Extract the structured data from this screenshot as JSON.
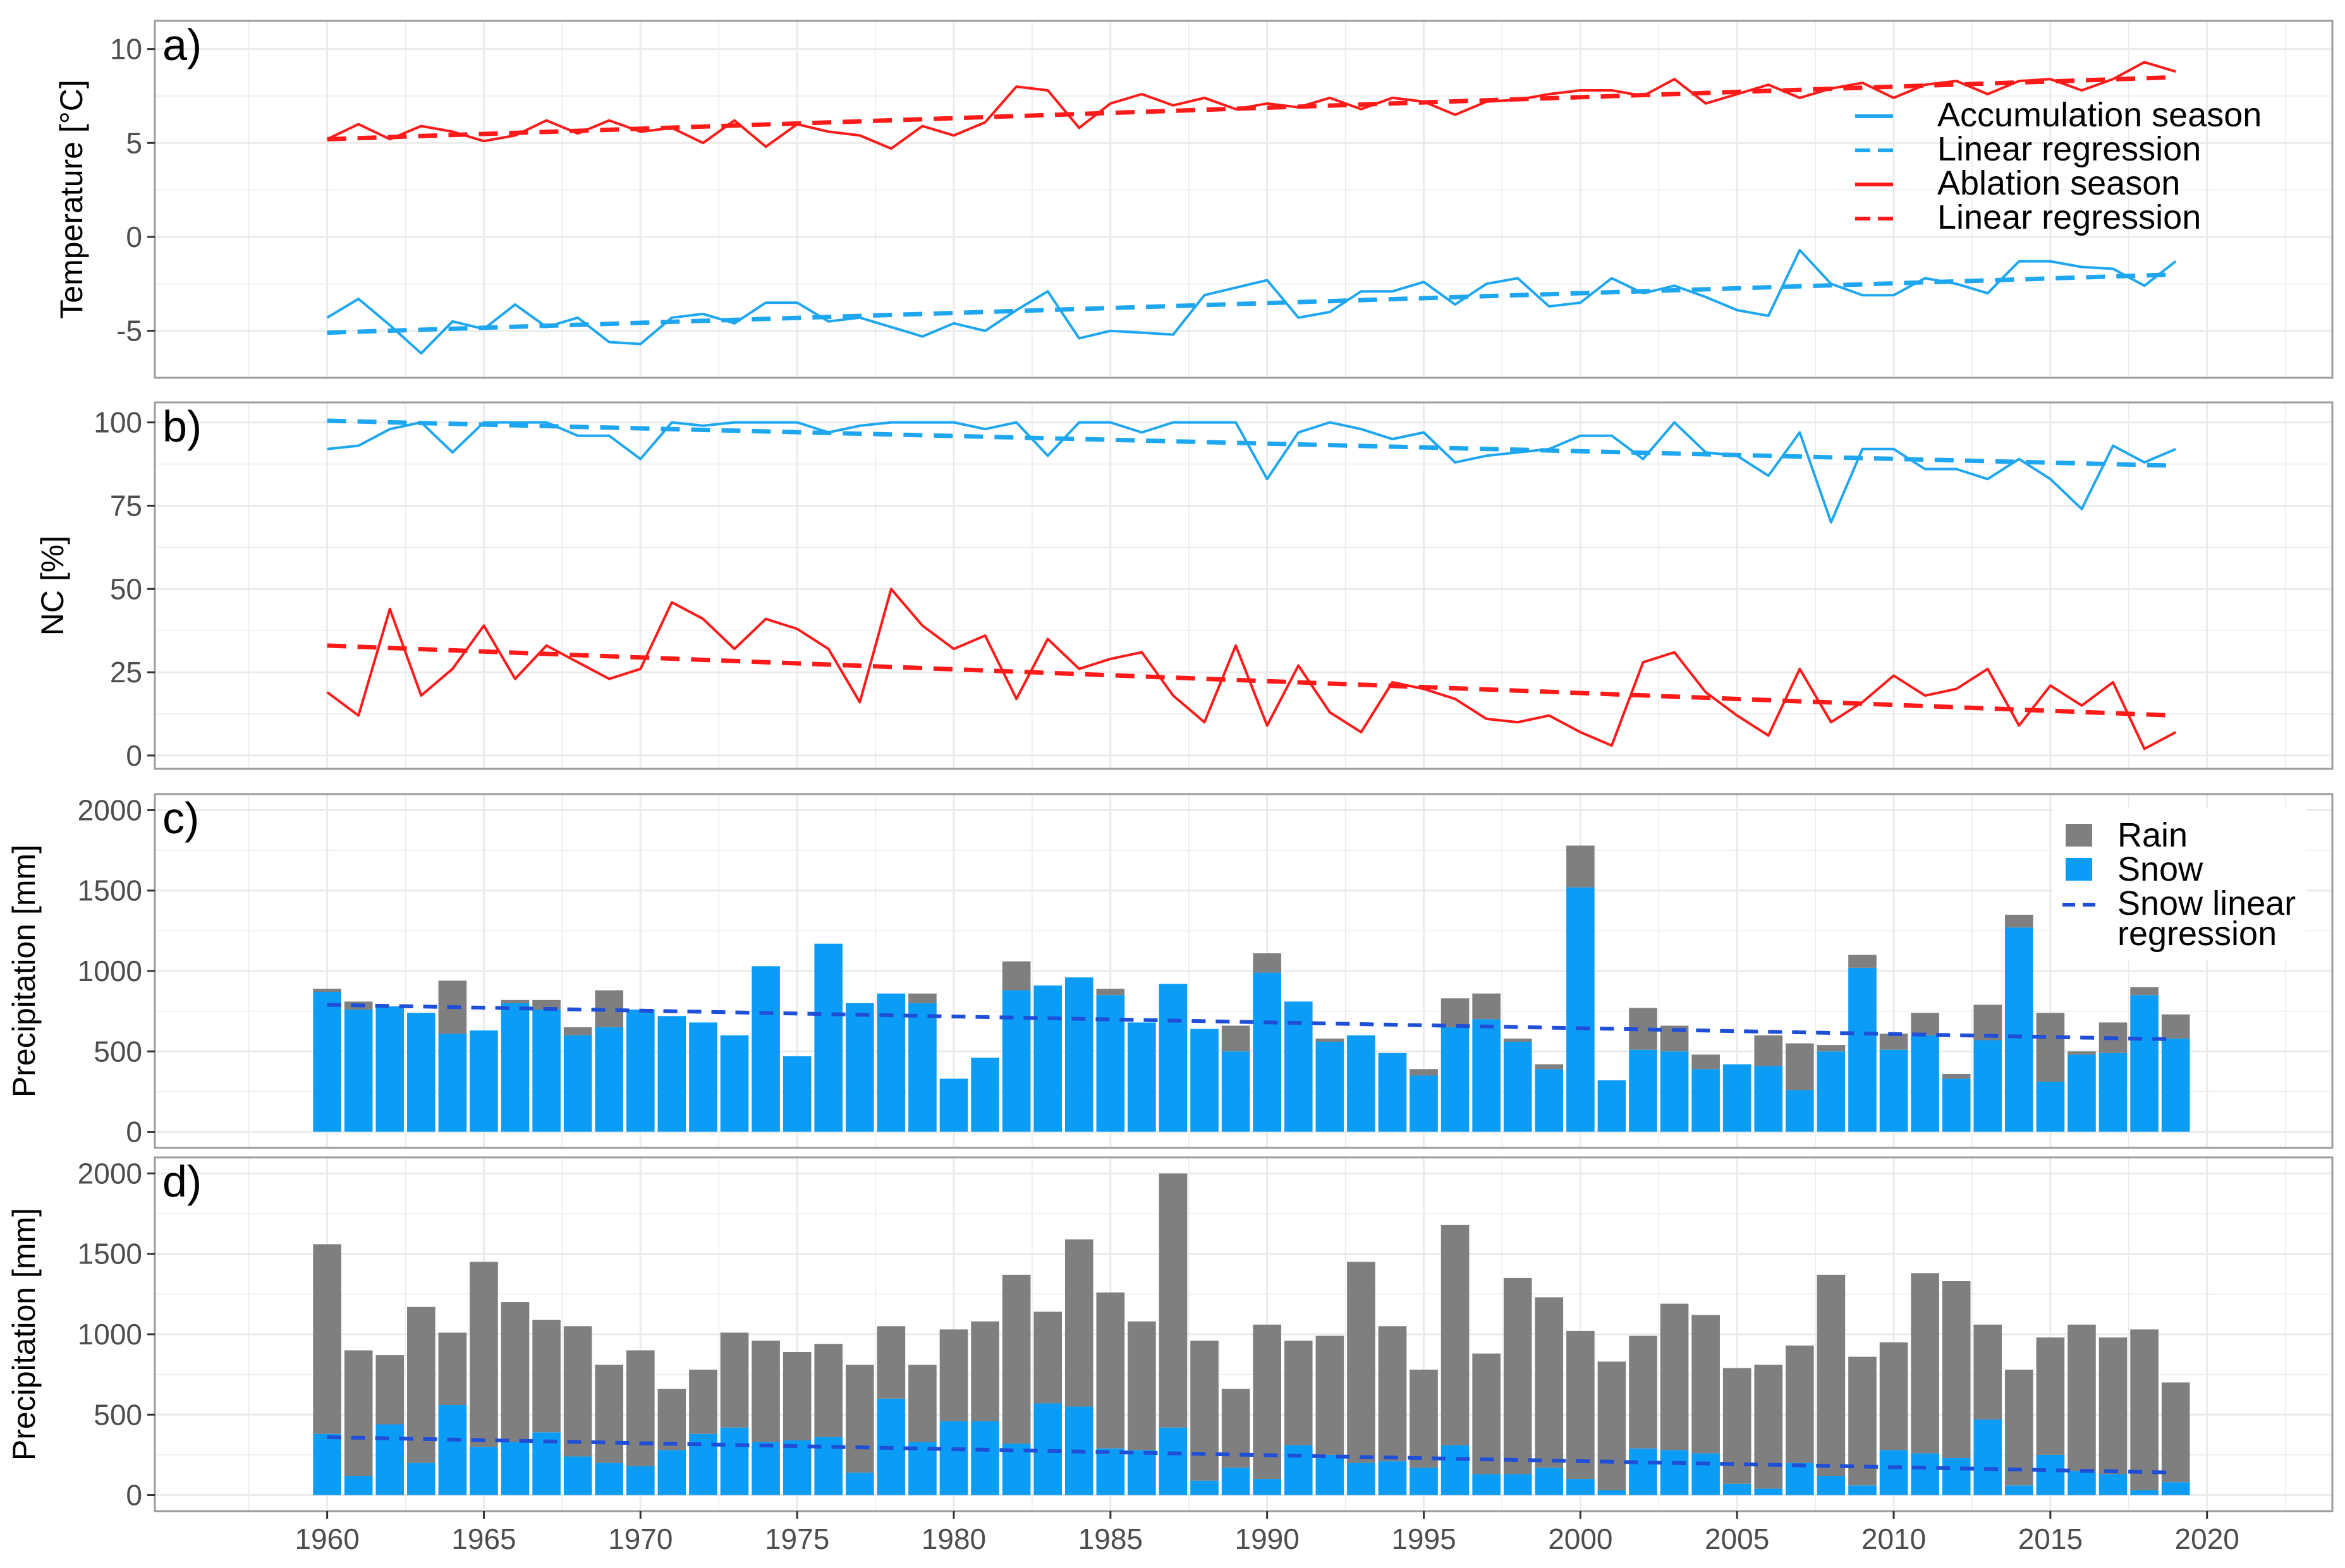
{
  "colors": {
    "accumulation": "#1ea7f0",
    "ablation": "#ff1a1a",
    "rain": "#7f7f7f",
    "snow": "#0b9cf5",
    "snow_trend": "#1f4fd6",
    "grid": "#ebebeb",
    "panel_border": "#9c9c9c"
  },
  "chart_data": [
    {
      "type": "line",
      "panel_label": "a)",
      "ylabel": "Temperature [°C]",
      "ylim": [
        -7.5,
        11.5
      ],
      "y_ticks": [
        -5,
        0,
        5,
        10
      ],
      "y_tick_labels": [
        "-5",
        "0",
        "5",
        "10"
      ],
      "grid": true,
      "legend_position": "right",
      "x": [
        1960,
        1961,
        1962,
        1963,
        1964,
        1965,
        1966,
        1967,
        1968,
        1969,
        1970,
        1971,
        1972,
        1973,
        1974,
        1975,
        1976,
        1977,
        1978,
        1979,
        1980,
        1981,
        1982,
        1983,
        1984,
        1985,
        1986,
        1987,
        1988,
        1989,
        1990,
        1991,
        1992,
        1993,
        1994,
        1995,
        1996,
        1997,
        1998,
        1999,
        2000,
        2001,
        2002,
        2003,
        2004,
        2005,
        2006,
        2007,
        2008,
        2009,
        2010,
        2011,
        2012,
        2013,
        2014,
        2015,
        2016,
        2017,
        2018,
        2019
      ],
      "series": [
        {
          "name": "Ablation season",
          "style": "solid",
          "color_key": "ablation",
          "values": [
            5.2,
            6.0,
            5.2,
            5.9,
            5.6,
            5.1,
            5.4,
            6.2,
            5.5,
            6.2,
            5.6,
            5.8,
            5.0,
            6.2,
            4.8,
            6.0,
            5.6,
            5.4,
            4.7,
            5.9,
            5.4,
            6.1,
            8.0,
            7.8,
            5.8,
            7.1,
            7.6,
            7.0,
            7.4,
            6.8,
            7.1,
            6.9,
            7.4,
            6.8,
            7.4,
            7.2,
            6.5,
            7.2,
            7.3,
            7.6,
            7.8,
            7.8,
            7.5,
            8.4,
            7.1,
            7.6,
            8.1,
            7.4,
            7.9,
            8.2,
            7.4,
            8.1,
            8.3,
            7.6,
            8.3,
            8.4,
            7.8,
            8.4,
            9.3,
            8.8
          ]
        },
        {
          "name": "Linear regression",
          "style": "dashed",
          "color_key": "ablation",
          "values_endpoints": {
            "x": [
              1960,
              2019
            ],
            "y": [
              5.2,
              8.5
            ]
          }
        },
        {
          "name": "Accumulation season",
          "style": "solid",
          "color_key": "accumulation",
          "values": [
            -4.3,
            -3.3,
            -4.7,
            -6.2,
            -4.5,
            -4.9,
            -3.6,
            -4.8,
            -4.3,
            -5.6,
            -5.7,
            -4.3,
            -4.1,
            -4.6,
            -3.5,
            -3.5,
            -4.5,
            -4.3,
            -4.8,
            -5.3,
            -4.6,
            -5.0,
            -3.9,
            -2.9,
            -5.4,
            -5.0,
            -5.1,
            -5.2,
            -3.1,
            -2.7,
            -2.3,
            -4.3,
            -4.0,
            -2.9,
            -2.9,
            -2.4,
            -3.6,
            -2.5,
            -2.2,
            -3.7,
            -3.5,
            -2.2,
            -3.0,
            -2.6,
            -3.2,
            -3.9,
            -4.2,
            -0.7,
            -2.5,
            -3.1,
            -3.1,
            -2.2,
            -2.5,
            -3.0,
            -1.3,
            -1.3,
            -1.6,
            -1.7,
            -2.6,
            -1.3
          ]
        },
        {
          "name": "Linear regression",
          "style": "dashed",
          "color_key": "accumulation",
          "values_endpoints": {
            "x": [
              1960,
              2019
            ],
            "y": [
              -5.1,
              -2.0
            ]
          }
        }
      ],
      "legend": [
        {
          "label": "Accumulation season",
          "style": "solid",
          "color_key": "accumulation"
        },
        {
          "label": "Linear regression",
          "style": "dashed",
          "color_key": "accumulation"
        },
        {
          "label": "Ablation season",
          "style": "solid",
          "color_key": "ablation"
        },
        {
          "label": "Linear regression",
          "style": "dashed",
          "color_key": "ablation"
        }
      ]
    },
    {
      "type": "line",
      "panel_label": "b)",
      "ylabel": "NC [%]",
      "ylim": [
        -4,
        106
      ],
      "y_ticks": [
        0,
        25,
        50,
        75,
        100
      ],
      "y_tick_labels": [
        "0",
        "25",
        "50",
        "75",
        "100"
      ],
      "grid": true,
      "x": [
        1960,
        1961,
        1962,
        1963,
        1964,
        1965,
        1966,
        1967,
        1968,
        1969,
        1970,
        1971,
        1972,
        1973,
        1974,
        1975,
        1976,
        1977,
        1978,
        1979,
        1980,
        1981,
        1982,
        1983,
        1984,
        1985,
        1986,
        1987,
        1988,
        1989,
        1990,
        1991,
        1992,
        1993,
        1994,
        1995,
        1996,
        1997,
        1998,
        1999,
        2000,
        2001,
        2002,
        2003,
        2004,
        2005,
        2006,
        2007,
        2008,
        2009,
        2010,
        2011,
        2012,
        2013,
        2014,
        2015,
        2016,
        2017,
        2018,
        2019
      ],
      "series": [
        {
          "name": "Accumulation season",
          "style": "solid",
          "color_key": "accumulation",
          "values": [
            92,
            93,
            98,
            100,
            91,
            100,
            100,
            100,
            96,
            96,
            89,
            100,
            99,
            100,
            100,
            100,
            97,
            99,
            100,
            100,
            100,
            98,
            100,
            90,
            100,
            100,
            97,
            100,
            100,
            100,
            83,
            97,
            100,
            98,
            95,
            97,
            88,
            90,
            91,
            92,
            96,
            96,
            89,
            100,
            91,
            90,
            84,
            97,
            70,
            92,
            92,
            86,
            86,
            83,
            89,
            83,
            74,
            93,
            88,
            92
          ]
        },
        {
          "name": "Linear regression",
          "style": "dashed",
          "color_key": "accumulation",
          "values_endpoints": {
            "x": [
              1960,
              2019
            ],
            "y": [
              100.5,
              87
            ]
          }
        },
        {
          "name": "Ablation season",
          "style": "solid",
          "color_key": "ablation",
          "values": [
            19,
            12,
            44,
            18,
            26,
            39,
            23,
            33,
            28,
            23,
            26,
            46,
            41,
            32,
            41,
            38,
            32,
            16,
            50,
            39,
            32,
            36,
            17,
            35,
            26,
            29,
            31,
            18,
            10,
            33,
            9,
            27,
            13,
            7,
            22,
            20,
            17,
            11,
            10,
            12,
            7,
            3,
            28,
            31,
            19,
            12,
            6,
            26,
            10,
            16,
            24,
            18,
            20,
            26,
            9,
            21,
            15,
            22,
            2,
            7
          ]
        },
        {
          "name": "Linear regression",
          "style": "dashed",
          "color_key": "ablation",
          "values_endpoints": {
            "x": [
              1960,
              2019
            ],
            "y": [
              33,
              12
            ]
          }
        }
      ]
    },
    {
      "type": "bar",
      "stacked": true,
      "panel_label": "c)",
      "ylabel": "Precipitation [mm]",
      "ylim": [
        -100,
        2100
      ],
      "y_ticks": [
        0,
        500,
        1000,
        1500,
        2000
      ],
      "y_tick_labels": [
        "0",
        "500",
        "1000",
        "1500",
        "2000"
      ],
      "grid": true,
      "legend_position": "top-right",
      "x": [
        1960,
        1961,
        1962,
        1963,
        1964,
        1965,
        1966,
        1967,
        1968,
        1969,
        1970,
        1971,
        1972,
        1973,
        1974,
        1975,
        1976,
        1977,
        1978,
        1979,
        1980,
        1981,
        1982,
        1983,
        1984,
        1985,
        1986,
        1987,
        1988,
        1989,
        1990,
        1991,
        1992,
        1993,
        1994,
        1995,
        1996,
        1997,
        1998,
        1999,
        2000,
        2001,
        2002,
        2003,
        2004,
        2005,
        2006,
        2007,
        2008,
        2009,
        2010,
        2011,
        2012,
        2013,
        2014,
        2015,
        2016,
        2017,
        2018,
        2019
      ],
      "series": [
        {
          "name": "Snow",
          "color_key": "snow",
          "values": [
            870,
            760,
            780,
            740,
            610,
            630,
            800,
            760,
            600,
            650,
            760,
            720,
            680,
            600,
            1030,
            470,
            1170,
            800,
            860,
            800,
            330,
            460,
            880,
            910,
            960,
            850,
            680,
            920,
            640,
            500,
            990,
            810,
            560,
            600,
            490,
            350,
            650,
            700,
            560,
            390,
            1520,
            320,
            510,
            500,
            390,
            420,
            410,
            260,
            500,
            1020,
            510,
            600,
            330,
            570,
            1270,
            310,
            480,
            490,
            850,
            580
          ]
        },
        {
          "name": "Rain",
          "color_key": "rain",
          "values": [
            20,
            50,
            0,
            0,
            330,
            0,
            20,
            60,
            50,
            230,
            0,
            0,
            0,
            0,
            0,
            0,
            0,
            0,
            0,
            60,
            0,
            0,
            180,
            0,
            0,
            40,
            0,
            0,
            0,
            160,
            120,
            0,
            20,
            0,
            0,
            40,
            180,
            160,
            20,
            30,
            260,
            0,
            260,
            160,
            90,
            0,
            190,
            290,
            40,
            80,
            100,
            140,
            30,
            220,
            80,
            430,
            20,
            190,
            50,
            150
          ]
        },
        {
          "name": "Snow linear regression",
          "style": "dashed",
          "color_key": "snow_trend",
          "values_endpoints": {
            "x": [
              1960,
              2019
            ],
            "y": [
              790,
              575
            ]
          }
        }
      ],
      "legend": [
        {
          "label": "Rain",
          "kind": "box",
          "color_key": "rain"
        },
        {
          "label": "Snow",
          "kind": "box",
          "color_key": "snow"
        },
        {
          "label": "Snow linear",
          "label_line2": "regression",
          "kind": "dashed",
          "color_key": "snow_trend"
        }
      ]
    },
    {
      "type": "bar",
      "stacked": true,
      "panel_label": "d)",
      "ylabel": "Precipitation [mm]",
      "ylim": [
        -100,
        2100
      ],
      "y_ticks": [
        0,
        500,
        1000,
        1500,
        2000
      ],
      "y_tick_labels": [
        "0",
        "500",
        "1000",
        "1500",
        "2000"
      ],
      "xlim": [
        1954.5,
        2024
      ],
      "x_ticks": [
        1960,
        1965,
        1970,
        1975,
        1980,
        1985,
        1990,
        1995,
        2000,
        2005,
        2010,
        2015,
        2020
      ],
      "x_tick_labels": [
        "1960",
        "1965",
        "1970",
        "1975",
        "1980",
        "1985",
        "1990",
        "1995",
        "2000",
        "2005",
        "2010",
        "2015",
        "2020"
      ],
      "grid": true,
      "x": [
        1960,
        1961,
        1962,
        1963,
        1964,
        1965,
        1966,
        1967,
        1968,
        1969,
        1970,
        1971,
        1972,
        1973,
        1974,
        1975,
        1976,
        1977,
        1978,
        1979,
        1980,
        1981,
        1982,
        1983,
        1984,
        1985,
        1986,
        1987,
        1988,
        1989,
        1990,
        1991,
        1992,
        1993,
        1994,
        1995,
        1996,
        1997,
        1998,
        1999,
        2000,
        2001,
        2002,
        2003,
        2004,
        2005,
        2006,
        2007,
        2008,
        2009,
        2010,
        2011,
        2012,
        2013,
        2014,
        2015,
        2016,
        2017,
        2018,
        2019
      ],
      "series": [
        {
          "name": "Snow",
          "color_key": "snow",
          "values": [
            380,
            120,
            440,
            200,
            560,
            300,
            330,
            390,
            240,
            200,
            180,
            280,
            380,
            420,
            330,
            340,
            360,
            140,
            600,
            330,
            460,
            460,
            320,
            570,
            550,
            290,
            280,
            420,
            90,
            170,
            100,
            310,
            250,
            200,
            210,
            170,
            310,
            130,
            130,
            170,
            100,
            30,
            290,
            280,
            260,
            70,
            40,
            200,
            120,
            60,
            280,
            260,
            230,
            470,
            60,
            250,
            150,
            130,
            30,
            80
          ]
        },
        {
          "name": "Rain",
          "color_key": "rain",
          "values": [
            1180,
            780,
            430,
            970,
            450,
            1150,
            870,
            700,
            810,
            610,
            720,
            380,
            400,
            590,
            630,
            550,
            580,
            670,
            450,
            480,
            570,
            620,
            1050,
            570,
            1040,
            970,
            800,
            1580,
            870,
            490,
            960,
            650,
            740,
            1250,
            840,
            610,
            1370,
            750,
            1220,
            1060,
            920,
            800,
            700,
            910,
            860,
            720,
            770,
            730,
            1250,
            800,
            670,
            1120,
            1100,
            590,
            720,
            730,
            910,
            850,
            1000,
            620
          ]
        },
        {
          "name": "Snow linear regression",
          "style": "dashed",
          "color_key": "snow_trend",
          "values_endpoints": {
            "x": [
              1960,
              2019
            ],
            "y": [
              360,
              140
            ]
          }
        }
      ]
    }
  ]
}
